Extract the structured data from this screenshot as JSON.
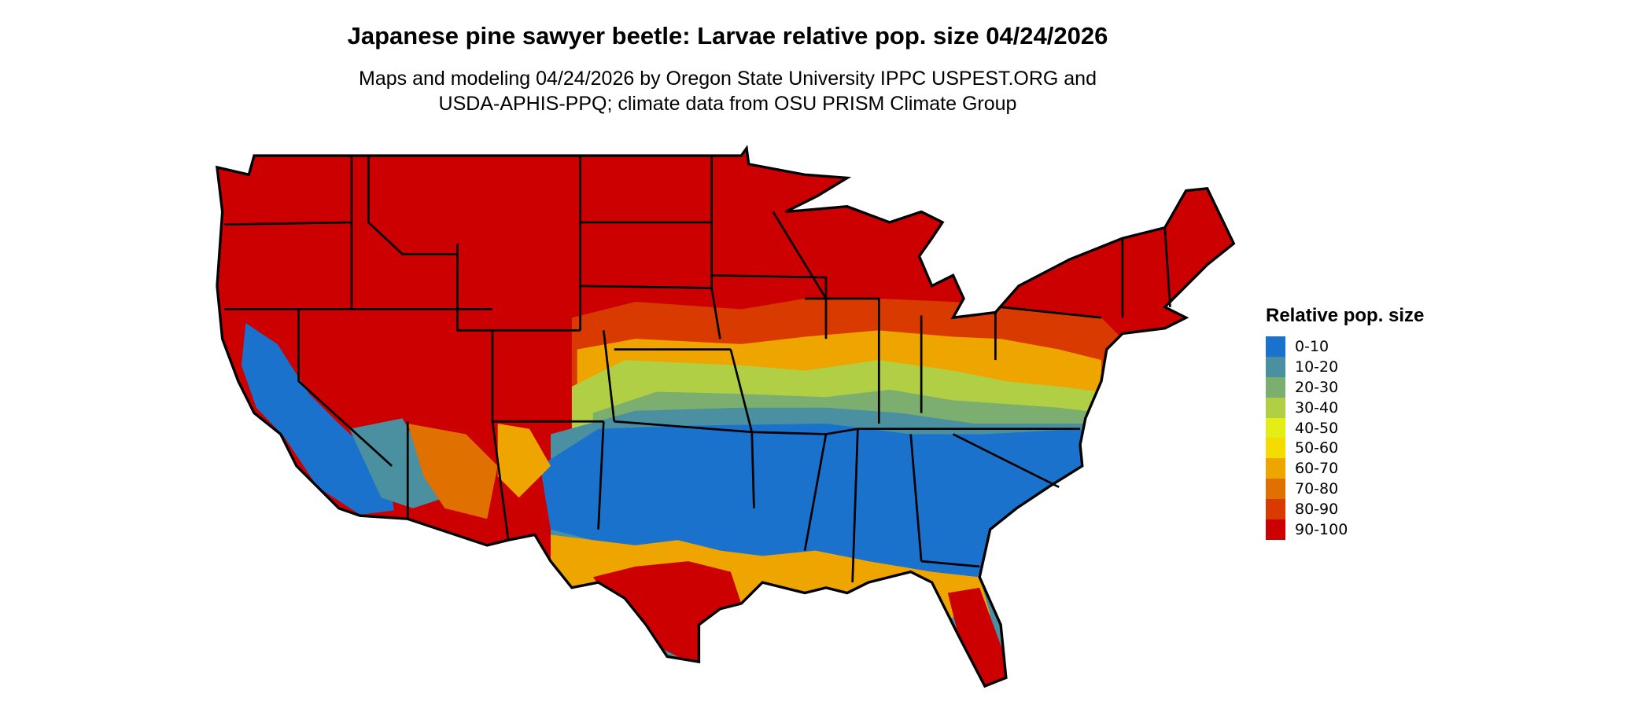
{
  "title": "Japanese pine sawyer beetle: Larvae relative pop. size 04/24/2026",
  "subtitle_line1": "Maps and modeling 04/24/2026 by Oregon State University IPPC USPEST.ORG and",
  "subtitle_line2": "USDA-APHIS-PPQ; climate data from OSU PRISM Climate Group",
  "legend": {
    "title": "Relative pop. size",
    "items": [
      {
        "label": "0-10",
        "color": "#1a72cc"
      },
      {
        "label": "10-20",
        "color": "#4a90a0"
      },
      {
        "label": "20-30",
        "color": "#7cae70"
      },
      {
        "label": "30-40",
        "color": "#b0cf44"
      },
      {
        "label": "40-50",
        "color": "#e2ee16"
      },
      {
        "label": "50-60",
        "color": "#f5dc00"
      },
      {
        "label": "60-70",
        "color": "#eea500"
      },
      {
        "label": "70-80",
        "color": "#e07000"
      },
      {
        "label": "80-90",
        "color": "#d83a00"
      },
      {
        "label": "90-100",
        "color": "#cc0000"
      }
    ]
  }
}
